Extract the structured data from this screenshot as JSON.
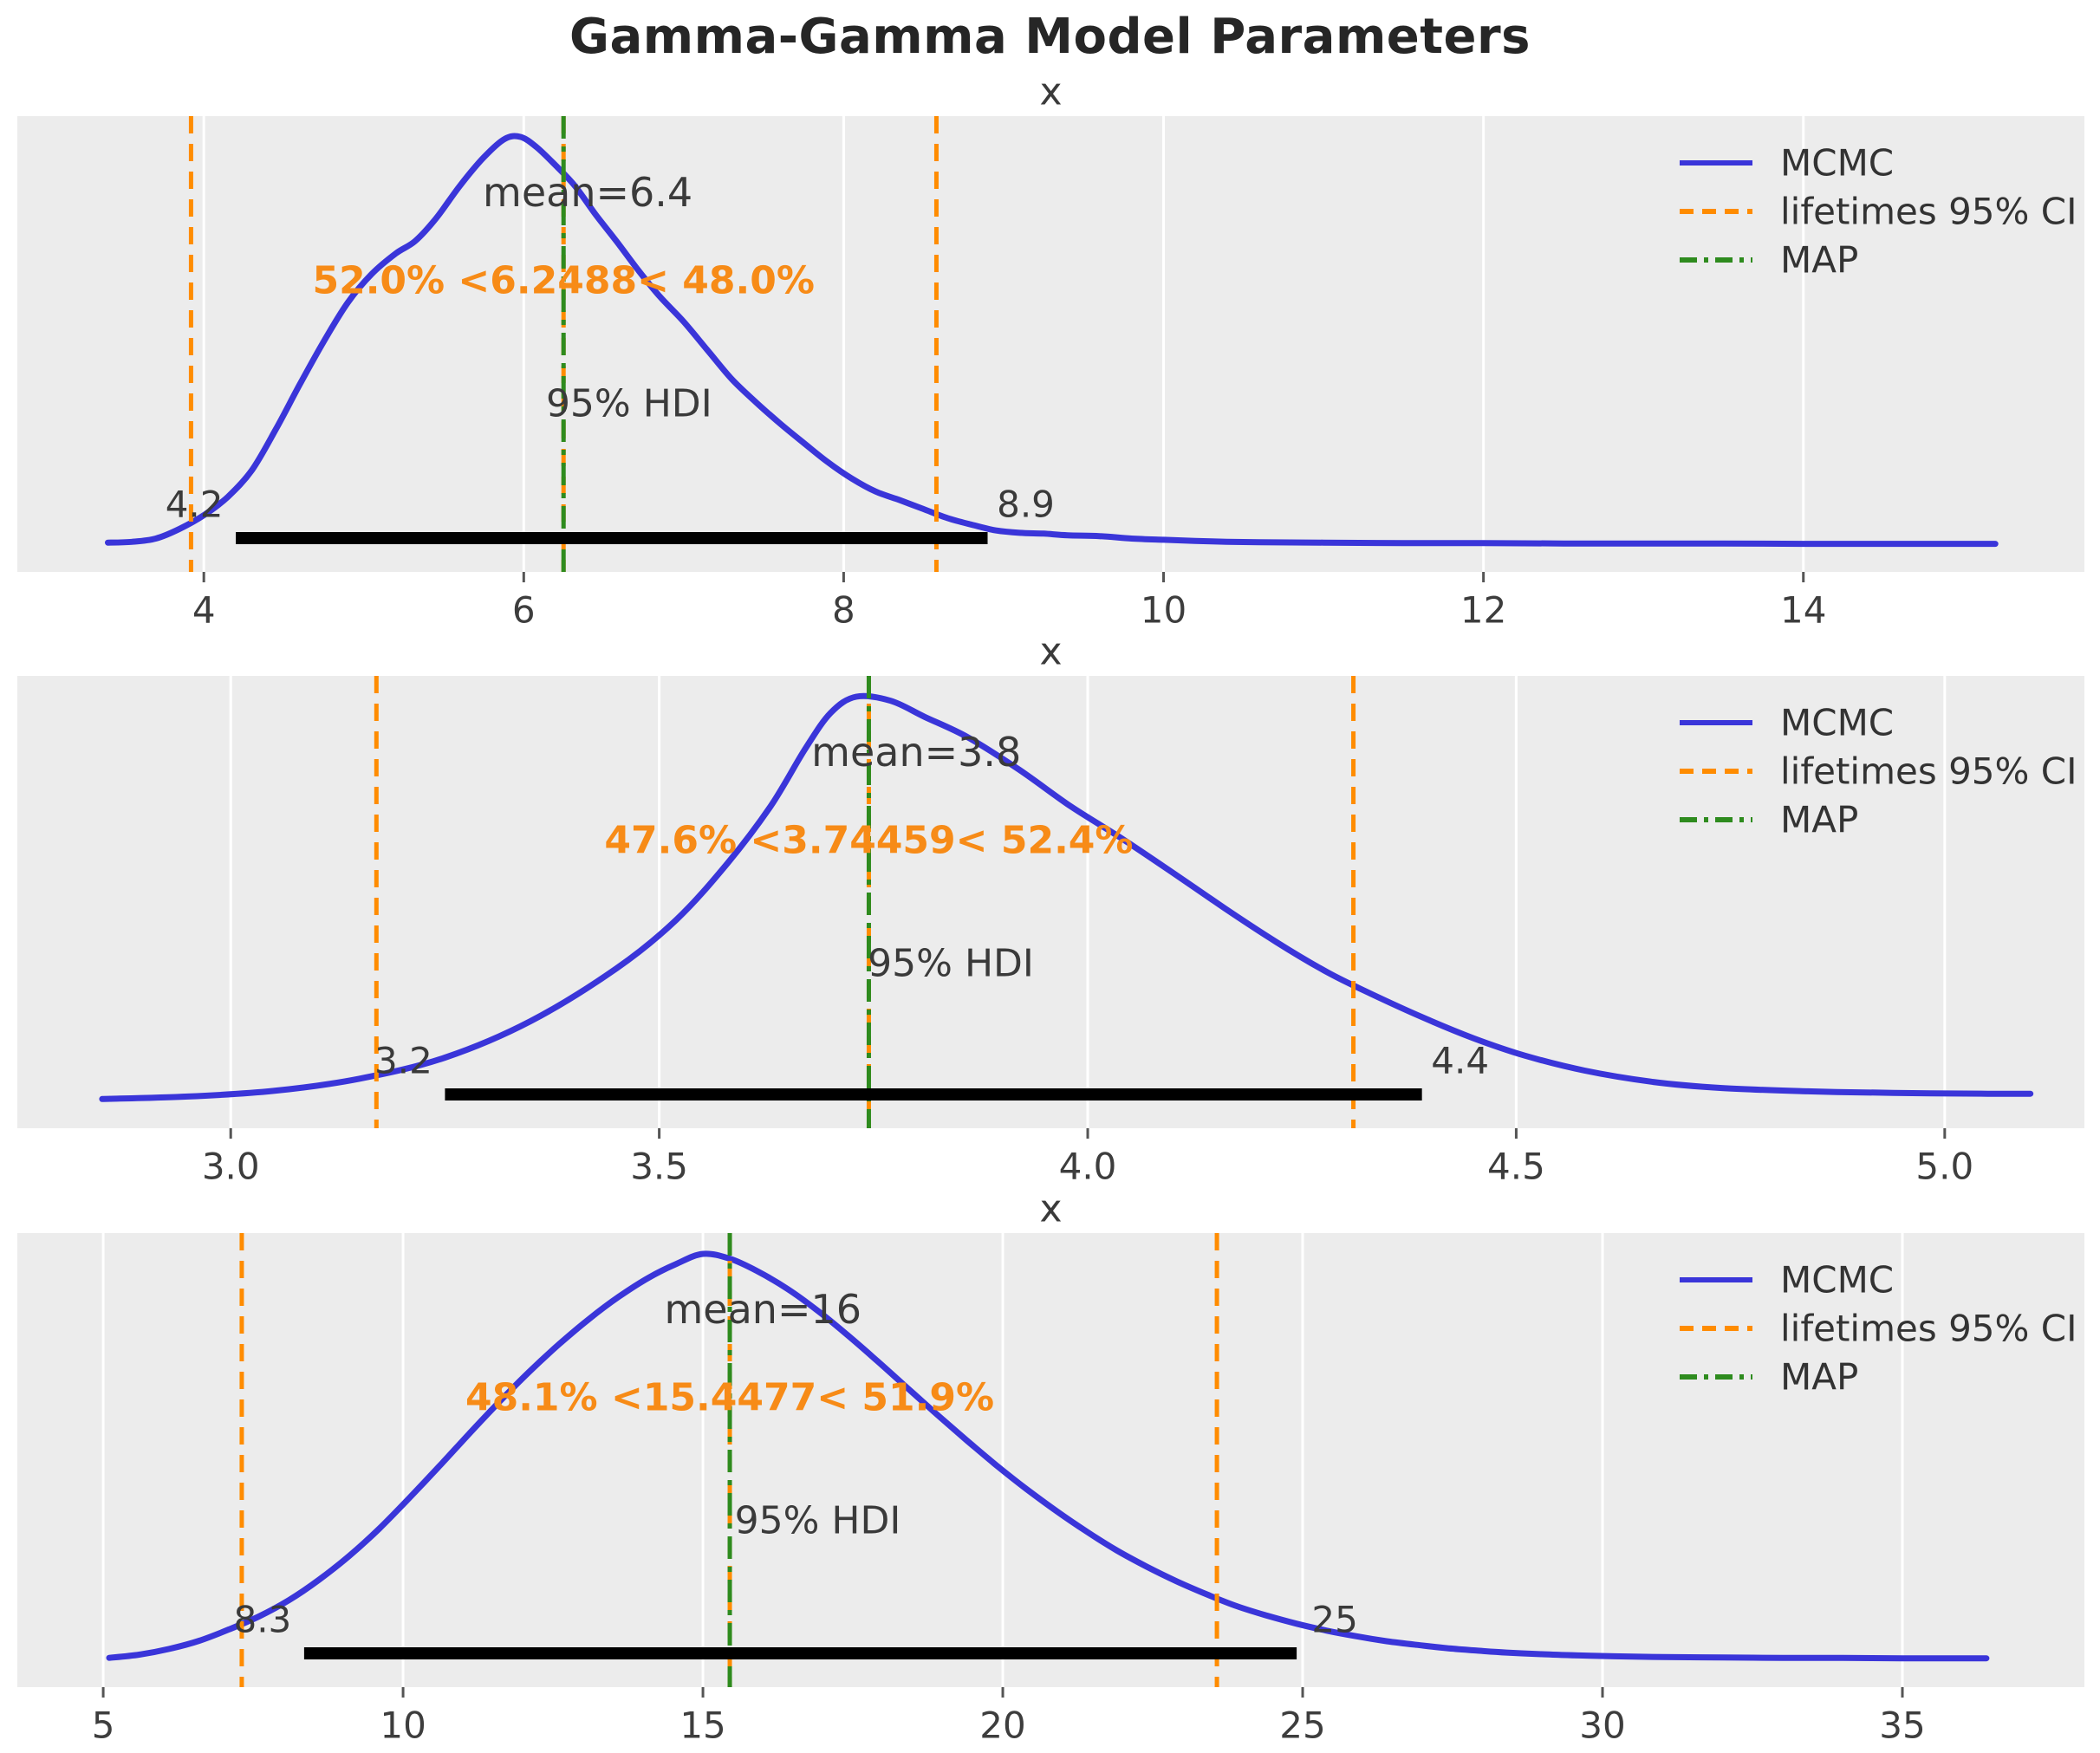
{
  "figure": {
    "title": "Gamma-Gamma Model Parameters",
    "background": "#ffffff",
    "axes_background": "#ececec",
    "grid_color": "#ffffff",
    "colors": {
      "mcmc": "#3a35d9",
      "ci": "#ff8c00",
      "map": "#2e8b1e",
      "hdi_bar": "#000000",
      "text": "#3d3d3d",
      "annotation": "#f78b17",
      "title": "#262626"
    },
    "legend": {
      "items": [
        {
          "label": "MCMC",
          "style": "solid",
          "color_key": "mcmc"
        },
        {
          "label": "lifetimes 95% CI",
          "style": "dashed",
          "color_key": "ci"
        },
        {
          "label": "MAP",
          "style": "dashdot",
          "color_key": "map"
        }
      ]
    }
  },
  "chart_data": [
    {
      "type": "line",
      "title": "x",
      "xlabel": "x",
      "legend_position": "upper right",
      "grid": true,
      "x_range": [
        2.834,
        15.757
      ],
      "x_ticks": [
        4,
        6,
        8,
        10,
        12,
        14
      ],
      "x_tick_labels": [
        "4",
        "6",
        "8",
        "10",
        "12",
        "14"
      ],
      "mean": 6.4,
      "mean_label": "mean=6.4",
      "map": 6.2488,
      "interval_annotation": "52.0% <6.2488< 48.0%",
      "ci_lower": 3.92,
      "ci_upper": 8.58,
      "hdi": {
        "label": "95% HDI",
        "lower": 4.2,
        "upper": 8.9,
        "lower_label": "4.2",
        "upper_label": "8.9"
      },
      "curve": [
        [
          3.4,
          0.008
        ],
        [
          3.55,
          0.01
        ],
        [
          3.7,
          0.018
        ],
        [
          3.85,
          0.042
        ],
        [
          4.0,
          0.075
        ],
        [
          4.15,
          0.12
        ],
        [
          4.3,
          0.185
        ],
        [
          4.45,
          0.285
        ],
        [
          4.6,
          0.395
        ],
        [
          4.75,
          0.5
        ],
        [
          4.9,
          0.595
        ],
        [
          5.05,
          0.665
        ],
        [
          5.2,
          0.715
        ],
        [
          5.32,
          0.745
        ],
        [
          5.45,
          0.8
        ],
        [
          5.6,
          0.88
        ],
        [
          5.75,
          0.95
        ],
        [
          5.88,
          0.995
        ],
        [
          5.98,
          1.0
        ],
        [
          6.08,
          0.975
        ],
        [
          6.2,
          0.93
        ],
        [
          6.32,
          0.88
        ],
        [
          6.45,
          0.81
        ],
        [
          6.58,
          0.745
        ],
        [
          6.72,
          0.672
        ],
        [
          6.85,
          0.61
        ],
        [
          7.0,
          0.548
        ],
        [
          7.15,
          0.478
        ],
        [
          7.3,
          0.408
        ],
        [
          7.45,
          0.352
        ],
        [
          7.6,
          0.3
        ],
        [
          7.75,
          0.252
        ],
        [
          7.9,
          0.205
        ],
        [
          8.05,
          0.165
        ],
        [
          8.2,
          0.133
        ],
        [
          8.35,
          0.112
        ],
        [
          8.5,
          0.09
        ],
        [
          8.65,
          0.068
        ],
        [
          8.8,
          0.052
        ],
        [
          8.95,
          0.038
        ],
        [
          9.1,
          0.032
        ],
        [
          9.25,
          0.03
        ],
        [
          9.4,
          0.026
        ],
        [
          9.6,
          0.024
        ],
        [
          9.8,
          0.018
        ],
        [
          10.0,
          0.015
        ],
        [
          10.3,
          0.011
        ],
        [
          10.6,
          0.009
        ],
        [
          11.0,
          0.008
        ],
        [
          11.5,
          0.007
        ],
        [
          12.0,
          0.007
        ],
        [
          12.5,
          0.006
        ],
        [
          13.0,
          0.006
        ],
        [
          13.5,
          0.006
        ],
        [
          14.0,
          0.005
        ],
        [
          14.5,
          0.005
        ],
        [
          15.0,
          0.005
        ],
        [
          15.2,
          0.005
        ]
      ]
    },
    {
      "type": "line",
      "title": "x",
      "xlabel": "x",
      "legend_position": "upper right",
      "grid": true,
      "x_range": [
        2.751,
        5.163
      ],
      "x_ticks": [
        3.0,
        3.5,
        4.0,
        4.5,
        5.0
      ],
      "x_tick_labels": [
        "3.0",
        "3.5",
        "4.0",
        "4.5",
        "5.0"
      ],
      "mean": 3.8,
      "mean_label": "mean=3.8",
      "map": 3.74459,
      "interval_annotation": "47.6% <3.74459< 52.4%",
      "ci_lower": 3.17,
      "ci_upper": 4.31,
      "hdi": {
        "label": "95% HDI",
        "lower": 3.25,
        "upper": 4.39,
        "lower_label": "3.2",
        "upper_label": "4.4"
      },
      "curve": [
        [
          2.85,
          0.008
        ],
        [
          2.95,
          0.014
        ],
        [
          3.05,
          0.028
        ],
        [
          3.15,
          0.058
        ],
        [
          3.25,
          0.11
        ],
        [
          3.35,
          0.2
        ],
        [
          3.45,
          0.33
        ],
        [
          3.52,
          0.45
        ],
        [
          3.58,
          0.59
        ],
        [
          3.63,
          0.73
        ],
        [
          3.67,
          0.87
        ],
        [
          3.7,
          0.96
        ],
        [
          3.73,
          1.0
        ],
        [
          3.77,
          0.99
        ],
        [
          3.81,
          0.95
        ],
        [
          3.86,
          0.9
        ],
        [
          3.92,
          0.82
        ],
        [
          3.98,
          0.73
        ],
        [
          4.04,
          0.65
        ],
        [
          4.1,
          0.565
        ],
        [
          4.16,
          0.478
        ],
        [
          4.22,
          0.395
        ],
        [
          4.28,
          0.32
        ],
        [
          4.33,
          0.268
        ],
        [
          4.39,
          0.21
        ],
        [
          4.45,
          0.158
        ],
        [
          4.51,
          0.115
        ],
        [
          4.58,
          0.078
        ],
        [
          4.66,
          0.05
        ],
        [
          4.74,
          0.035
        ],
        [
          4.84,
          0.027
        ],
        [
          4.94,
          0.023
        ],
        [
          5.05,
          0.021
        ],
        [
          5.1,
          0.021
        ]
      ]
    },
    {
      "type": "line",
      "title": "x",
      "xlabel": "x",
      "legend_position": "upper right",
      "grid": true,
      "x_range": [
        3.568,
        38.035
      ],
      "x_ticks": [
        5,
        10,
        15,
        20,
        25,
        30,
        35
      ],
      "x_tick_labels": [
        "5",
        "10",
        "15",
        "20",
        "25",
        "30",
        "35"
      ],
      "mean": 16,
      "mean_label": "mean=16",
      "map": 15.4477,
      "interval_annotation": "48.1% <15.4477< 51.9%",
      "ci_lower": 7.31,
      "ci_upper": 23.57,
      "hdi": {
        "label": "95% HDI",
        "lower": 8.35,
        "upper": 24.9,
        "lower_label": "8.3",
        "upper_label": "25"
      },
      "curve": [
        [
          5.1,
          0.008
        ],
        [
          5.6,
          0.016
        ],
        [
          6.1,
          0.03
        ],
        [
          6.6,
          0.05
        ],
        [
          7.1,
          0.078
        ],
        [
          7.6,
          0.11
        ],
        [
          8.1,
          0.15
        ],
        [
          8.6,
          0.2
        ],
        [
          9.1,
          0.258
        ],
        [
          9.6,
          0.325
        ],
        [
          10.1,
          0.4
        ],
        [
          10.6,
          0.478
        ],
        [
          11.1,
          0.558
        ],
        [
          11.6,
          0.636
        ],
        [
          12.1,
          0.71
        ],
        [
          12.6,
          0.778
        ],
        [
          13.1,
          0.84
        ],
        [
          13.6,
          0.895
        ],
        [
          14.1,
          0.942
        ],
        [
          14.55,
          0.975
        ],
        [
          15.0,
          1.0
        ],
        [
          15.45,
          0.988
        ],
        [
          15.9,
          0.958
        ],
        [
          16.4,
          0.915
        ],
        [
          16.9,
          0.862
        ],
        [
          17.4,
          0.802
        ],
        [
          17.9,
          0.738
        ],
        [
          18.4,
          0.672
        ],
        [
          18.9,
          0.606
        ],
        [
          19.4,
          0.542
        ],
        [
          19.9,
          0.48
        ],
        [
          20.4,
          0.422
        ],
        [
          20.9,
          0.368
        ],
        [
          21.4,
          0.318
        ],
        [
          21.9,
          0.272
        ],
        [
          22.4,
          0.232
        ],
        [
          22.9,
          0.196
        ],
        [
          23.4,
          0.164
        ],
        [
          23.9,
          0.135
        ],
        [
          24.4,
          0.112
        ],
        [
          24.9,
          0.092
        ],
        [
          25.4,
          0.075
        ],
        [
          25.9,
          0.061
        ],
        [
          26.4,
          0.049
        ],
        [
          26.9,
          0.04
        ],
        [
          27.4,
          0.032
        ],
        [
          27.9,
          0.026
        ],
        [
          28.4,
          0.021
        ],
        [
          29.0,
          0.017
        ],
        [
          29.6,
          0.014
        ],
        [
          30.2,
          0.012
        ],
        [
          31.0,
          0.01
        ],
        [
          32.0,
          0.009
        ],
        [
          33.0,
          0.008
        ],
        [
          34.0,
          0.008
        ],
        [
          35.0,
          0.007
        ],
        [
          36.0,
          0.007
        ],
        [
          36.4,
          0.007
        ]
      ]
    }
  ]
}
